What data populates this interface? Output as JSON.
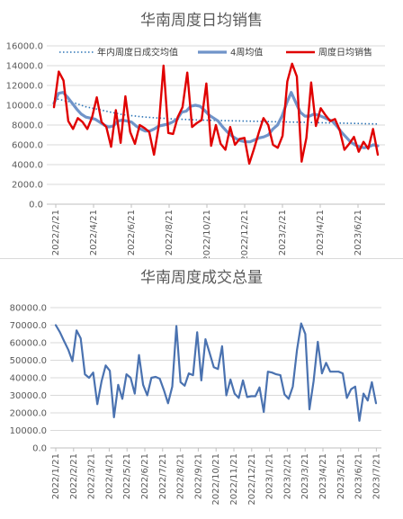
{
  "chart_data": [
    {
      "type": "line",
      "title": "华南周度日均销售",
      "ylim": [
        0,
        16000
      ],
      "y_ticks": [
        "0.0",
        "2000.0",
        "4000.0",
        "6000.0",
        "8000.0",
        "10000.0",
        "12000.0",
        "14000.0",
        "16000.0"
      ],
      "x_ticks": [
        "2022/2/21",
        "2022/4/21",
        "2022/6/21",
        "2022/8/21",
        "2022/10/21",
        "2022/12/21",
        "2023/2/21",
        "2023/4/21",
        "2023/6/21"
      ],
      "legend": "top",
      "grid": true,
      "series": [
        {
          "name": "年内周度日成交均值",
          "color": "#2e75b6",
          "style": "dotted",
          "values": [
            10700,
            10600,
            10500,
            10400,
            10300,
            10150,
            10000,
            9850,
            9750,
            9650,
            9550,
            9450,
            9350,
            9250,
            9150,
            9050,
            9000,
            8950,
            8900,
            8850,
            8800,
            8770,
            8740,
            8710,
            8680,
            8650,
            8620,
            8600,
            8580,
            8560,
            8540,
            8520,
            8500,
            8490,
            8480,
            8470,
            8460,
            8450,
            8440,
            8430,
            8420,
            8410,
            8400,
            8390,
            8380,
            8370,
            8360,
            8350,
            8340,
            8330,
            8320,
            8310,
            8300,
            8290,
            8280,
            8270,
            8260,
            8250,
            8240,
            8230,
            8220,
            8210,
            8200,
            8190,
            8180,
            8170,
            8160,
            8150,
            8140,
            8130,
            8120,
            8110
          ]
        },
        {
          "name": "4周均值",
          "color": "#7094c9",
          "style": "solid",
          "values": [
            10200,
            11200,
            11300,
            10800,
            10200,
            9600,
            9100,
            8800,
            8700,
            8600,
            8300,
            8000,
            7800,
            7900,
            8400,
            8500,
            8400,
            8300,
            7900,
            7600,
            7400,
            7400,
            7600,
            7900,
            8000,
            8100,
            8300,
            8600,
            9300,
            9400,
            9900,
            10000,
            9900,
            9500,
            9000,
            8700,
            8400,
            7800,
            7300,
            6900,
            6600,
            6400,
            6300,
            6300,
            6500,
            6700,
            6800,
            7000,
            7600,
            8000,
            8900,
            10200,
            11300,
            10300,
            9300,
            8900,
            8900,
            9100,
            9000,
            8800,
            8600,
            8400,
            7900,
            7300,
            6800,
            6300,
            6000,
            5800,
            5700,
            5800,
            6000,
            5900
          ]
        },
        {
          "name": "周度日均销售",
          "color": "#e00000",
          "style": "solid",
          "values": [
            9800,
            13400,
            12500,
            8400,
            7600,
            8700,
            8300,
            7600,
            8800,
            10800,
            8300,
            7800,
            5800,
            9500,
            6200,
            10900,
            7300,
            6100,
            8000,
            7700,
            7300,
            5000,
            7900,
            14000,
            7200,
            7100,
            8800,
            9800,
            13300,
            7800,
            8200,
            8500,
            12200,
            5900,
            8000,
            6100,
            5500,
            7800,
            6000,
            6600,
            6700,
            4100,
            5600,
            7200,
            8700,
            8000,
            6000,
            5700,
            6900,
            12400,
            14200,
            12900,
            4300,
            6700,
            12300,
            7900,
            9700,
            9000,
            8400,
            8600,
            7500,
            5500,
            6100,
            6800,
            5300,
            6300,
            5600,
            7600,
            5000
          ]
        }
      ]
    },
    {
      "type": "line",
      "title": "华南周度成交总量",
      "ylim": [
        0,
        80000
      ],
      "y_ticks": [
        "0.0",
        "10000.0",
        "20000.0",
        "30000.0",
        "40000.0",
        "50000.0",
        "60000.0",
        "70000.0",
        "80000.0"
      ],
      "x_ticks": [
        "2022/1/21",
        "2022/2/21",
        "2022/3/21",
        "2022/4/21",
        "2022/5/21",
        "2022/6/21",
        "2022/7/21",
        "2022/8/21",
        "2022/9/21",
        "2022/10/21",
        "2022/11/21",
        "2022/12/21",
        "2023/1/21",
        "2023/2/21",
        "2023/3/21",
        "2023/4/21",
        "2023/5/21",
        "2023/6/21",
        "2023/7/21"
      ],
      "grid": true,
      "series": [
        {
          "name": "",
          "color": "#4a72b0",
          "style": "solid",
          "values": [
            70000,
            66000,
            61000,
            56000,
            49500,
            67000,
            62500,
            42000,
            40000,
            43000,
            25000,
            38000,
            47000,
            44000,
            17500,
            36000,
            28000,
            42000,
            40000,
            31000,
            53000,
            36000,
            30000,
            40000,
            40500,
            39500,
            33000,
            25500,
            35000,
            69500,
            37500,
            35500,
            42500,
            41500,
            66000,
            38500,
            62000,
            54000,
            46000,
            45000,
            58000,
            30000,
            39000,
            31000,
            28500,
            38500,
            29000,
            29500,
            29500,
            34500,
            20500,
            43500,
            43000,
            42000,
            41500,
            30500,
            28000,
            35000,
            56000,
            71000,
            65000,
            22000,
            38000,
            60500,
            42500,
            48500,
            43500,
            43500,
            43500,
            42500,
            28500,
            33500,
            35000,
            15500,
            31000,
            27000,
            37500,
            25500
          ]
        }
      ]
    }
  ]
}
